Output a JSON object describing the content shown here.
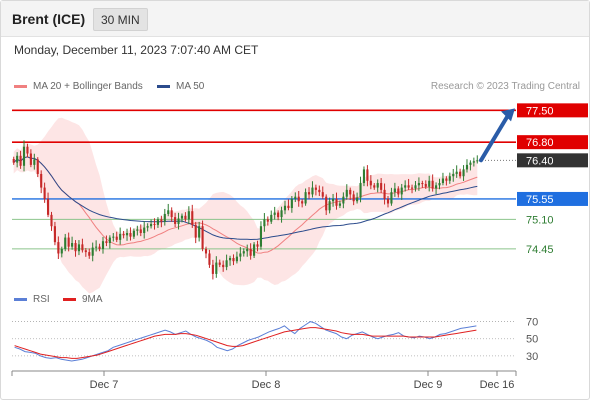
{
  "header": {
    "instrument": "Brent (ICE)",
    "timeframe": "30 MIN"
  },
  "timestamp": "Monday, December 11, 2023 7:07:40 AM CET",
  "copyright": "Research © 2023 Trading Central",
  "legend": {
    "ma20": {
      "label": "MA 20 + Bollinger Bands",
      "color": "#f08080"
    },
    "ma50": {
      "label": "MA 50",
      "color": "#2b4b8c"
    },
    "rsi": {
      "label": "RSI",
      "color": "#5b7fd6"
    },
    "ma9": {
      "label": "9MA",
      "color": "#e02020"
    }
  },
  "chart_data": [
    {
      "type": "candlestick",
      "title": "",
      "price_range": [
        73.7,
        77.75
      ],
      "x_tick_labels": [
        "Dec 7",
        "Dec 8",
        "Dec 9",
        "Dec 16"
      ],
      "current_price": "76.40",
      "resistance_levels": [
        "77.50",
        "76.80"
      ],
      "support_levels": [
        "75.55",
        "75.10",
        "74.45"
      ],
      "forecast_arrow": {
        "from": 76.4,
        "to": 77.5,
        "direction": "up"
      },
      "colors": {
        "up": "#2e7d32",
        "down": "#c62828",
        "resistance": "#e00000",
        "pivot": "#1f6fe0",
        "support": "#8bc48b",
        "current": "#333333",
        "band": "#fde0e0",
        "arrow": "#2a5ca8"
      },
      "closes": [
        76.35,
        76.5,
        76.28,
        76.7,
        76.55,
        76.3,
        76.42,
        76.1,
        75.8,
        75.55,
        75.2,
        74.95,
        74.6,
        74.35,
        74.45,
        74.7,
        74.5,
        74.58,
        74.4,
        74.55,
        74.42,
        74.38,
        74.3,
        74.48,
        74.5,
        74.45,
        74.62,
        74.58,
        74.7,
        74.72,
        74.65,
        74.78,
        74.75,
        74.8,
        74.72,
        74.85,
        74.88,
        74.8,
        74.92,
        74.95,
        75.0,
        74.98,
        75.1,
        75.05,
        75.22,
        75.3,
        75.15,
        75.0,
        75.12,
        75.18,
        75.1,
        75.28,
        74.98,
        74.7,
        74.95,
        74.45,
        74.35,
        74.1,
        73.9,
        74.15,
        74.1,
        74.05,
        74.2,
        74.25,
        74.18,
        74.28,
        74.35,
        74.4,
        74.45,
        74.3,
        74.55,
        74.5,
        74.95,
        75.1,
        75.05,
        75.2,
        75.25,
        75.15,
        75.3,
        75.4,
        75.35,
        75.55,
        75.6,
        75.5,
        75.45,
        75.7,
        75.65,
        75.8,
        75.75,
        75.7,
        75.6,
        75.3,
        75.5,
        75.55,
        75.4,
        75.45,
        75.6,
        75.75,
        75.65,
        75.5,
        75.58,
        75.9,
        76.2,
        75.95,
        75.85,
        75.8,
        75.9,
        75.75,
        75.55,
        75.45,
        75.7,
        75.78,
        75.65,
        75.8,
        75.85,
        75.8,
        75.78,
        75.85,
        75.9,
        75.88,
        75.82,
        75.95,
        75.78,
        75.85,
        75.9,
        76.0,
        75.95,
        76.05,
        76.1,
        76.15,
        76.05,
        76.2,
        76.3,
        76.35,
        76.38,
        76.4
      ]
    },
    {
      "type": "line",
      "title": "",
      "ylim": [
        17,
        80
      ],
      "y_tick_labels": [
        "70",
        "50",
        "30"
      ],
      "y_tick_values": [
        70,
        50,
        30
      ],
      "series": [
        {
          "name": "RSI",
          "values": [
            40,
            38,
            35,
            34,
            33,
            30,
            28,
            27,
            28,
            26,
            25,
            24,
            25,
            26,
            28,
            30,
            32,
            34,
            36,
            40,
            42,
            44,
            46,
            48,
            50,
            52,
            54,
            56,
            58,
            60,
            58,
            55,
            57,
            59,
            55,
            52,
            50,
            48,
            45,
            40,
            38,
            36,
            38,
            42,
            45,
            48,
            50,
            52,
            55,
            58,
            60,
            62,
            65,
            60,
            56,
            62,
            66,
            70,
            68,
            64,
            60,
            58,
            56,
            52,
            50,
            54,
            56,
            58,
            55,
            52,
            50,
            52,
            54,
            55,
            57,
            53,
            52,
            51,
            53,
            52,
            50,
            52,
            55,
            56,
            58,
            60,
            62,
            63,
            64,
            65
          ]
        },
        {
          "name": "9MA",
          "values": [
            42,
            40,
            38,
            36,
            34,
            32,
            31,
            30,
            29,
            28,
            28,
            27,
            27,
            28,
            29,
            30,
            31,
            33,
            35,
            37,
            39,
            41,
            43,
            45,
            47,
            49,
            51,
            53,
            54,
            55,
            55,
            55,
            56,
            56,
            55,
            54,
            52,
            50,
            48,
            46,
            44,
            42,
            41,
            41,
            42,
            44,
            46,
            48,
            50,
            52,
            54,
            56,
            58,
            59,
            60,
            61,
            62,
            63,
            63,
            62,
            61,
            60,
            59,
            57,
            56,
            55,
            55,
            55,
            54,
            53,
            53,
            53,
            53,
            53,
            53,
            53,
            52,
            52,
            52,
            52,
            52,
            52,
            53,
            54,
            55,
            56,
            57,
            58,
            59,
            60
          ]
        }
      ]
    }
  ]
}
